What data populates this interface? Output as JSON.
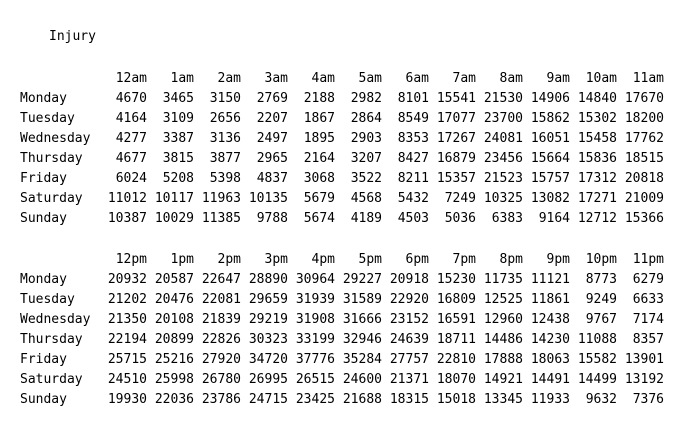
{
  "title": "Injury",
  "days": [
    "Monday",
    "Tuesday",
    "Wednesday",
    "Thursday",
    "Friday",
    "Saturday",
    "Sunday"
  ],
  "am": {
    "hours": [
      "12am",
      "1am",
      "2am",
      "3am",
      "4am",
      "5am",
      "6am",
      "7am",
      "8am",
      "9am",
      "10am",
      "11am"
    ],
    "rows": [
      [
        "4670",
        "3465",
        "3150",
        "2769",
        "2188",
        "2982",
        "8101",
        "15541",
        "21530",
        "14906",
        "14840",
        "17670"
      ],
      [
        "4164",
        "3109",
        "2656",
        "2207",
        "1867",
        "2864",
        "8549",
        "17077",
        "23700",
        "15862",
        "15302",
        "18200"
      ],
      [
        "4277",
        "3387",
        "3136",
        "2497",
        "1895",
        "2903",
        "8353",
        "17267",
        "24081",
        "16051",
        "15458",
        "17762"
      ],
      [
        "4677",
        "3815",
        "3877",
        "2965",
        "2164",
        "3207",
        "8427",
        "16879",
        "23456",
        "15664",
        "15836",
        "18515"
      ],
      [
        "6024",
        "5208",
        "5398",
        "4837",
        "3068",
        "3522",
        "8211",
        "15357",
        "21523",
        "15757",
        "17312",
        "20818"
      ],
      [
        "11012",
        "10117",
        "11963",
        "10135",
        "5679",
        "4568",
        "5432",
        "7249",
        "10325",
        "13082",
        "17271",
        "21009"
      ],
      [
        "10387",
        "10029",
        "11385",
        "9788",
        "5674",
        "4189",
        "4503",
        "5036",
        "6383",
        "9164",
        "12712",
        "15366"
      ]
    ]
  },
  "pm": {
    "hours": [
      "12pm",
      "1pm",
      "2pm",
      "3pm",
      "4pm",
      "5pm",
      "6pm",
      "7pm",
      "8pm",
      "9pm",
      "10pm",
      "11pm"
    ],
    "rows": [
      [
        "20932",
        "20587",
        "22647",
        "28890",
        "30964",
        "29227",
        "20918",
        "15230",
        "11735",
        "11121",
        "8773",
        "6279"
      ],
      [
        "21202",
        "20476",
        "22081",
        "29659",
        "31939",
        "31589",
        "22920",
        "16809",
        "12525",
        "11861",
        "9249",
        "6633"
      ],
      [
        "21350",
        "20108",
        "21839",
        "29219",
        "31908",
        "31666",
        "23152",
        "16591",
        "12960",
        "12438",
        "9767",
        "7174"
      ],
      [
        "22194",
        "20899",
        "22826",
        "30323",
        "33199",
        "32946",
        "24639",
        "18711",
        "14486",
        "14230",
        "11088",
        "8357"
      ],
      [
        "25715",
        "25216",
        "27920",
        "34720",
        "37776",
        "35284",
        "27757",
        "22810",
        "17888",
        "18063",
        "15582",
        "13901"
      ],
      [
        "24510",
        "25998",
        "26780",
        "26995",
        "26515",
        "24600",
        "21371",
        "18070",
        "14921",
        "14491",
        "14499",
        "13192"
      ],
      [
        "19930",
        "22036",
        "23786",
        "24715",
        "23425",
        "21688",
        "18315",
        "15018",
        "13345",
        "11933",
        "9632",
        "7376"
      ]
    ]
  }
}
